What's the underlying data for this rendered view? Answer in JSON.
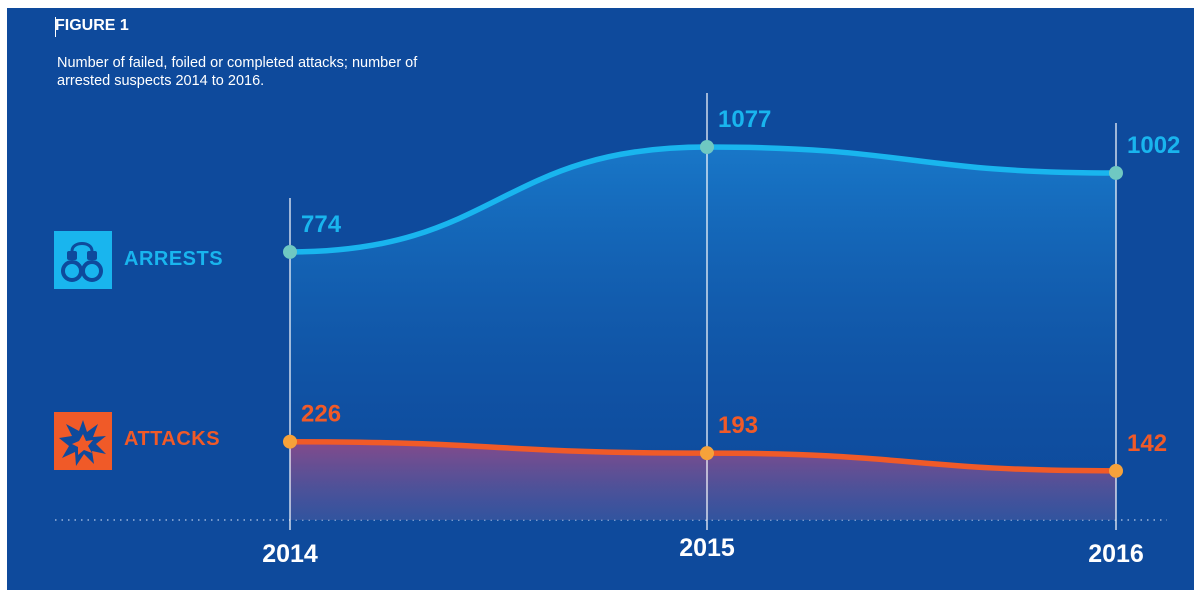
{
  "figure_label": "FIGURE 1",
  "subtitle_lines": [
    "Number of failed, foiled or completed attacks; number of",
    "arrested suspects 2014 to 2016."
  ],
  "legend": {
    "arrests_label": "ARRESTS",
    "attacks_label": "ATTACKS",
    "arrests_icon": "handcuffs-icon",
    "attacks_icon": "explosion-icon"
  },
  "colors": {
    "background": "#0e4a9c",
    "arrests": "#19b5ee",
    "arrests_marker": "#6fc8c2",
    "attacks": "#f05a28",
    "attacks_marker": "#f6a23a",
    "axis": "#ffffff"
  },
  "chart_data": {
    "type": "area",
    "categories": [
      "2014",
      "2015",
      "2016"
    ],
    "series": [
      {
        "name": "ARRESTS",
        "values": [
          774,
          1077,
          1002
        ]
      },
      {
        "name": "ATTACKS",
        "values": [
          226,
          193,
          142
        ]
      }
    ],
    "title": "FIGURE 1",
    "subtitle": "Number of failed, foiled or completed attacks; number of arrested suspects 2014 to 2016.",
    "xlabel": "",
    "ylabel": "",
    "ylim": [
      0,
      1150
    ],
    "grid": false,
    "legend": "left"
  }
}
